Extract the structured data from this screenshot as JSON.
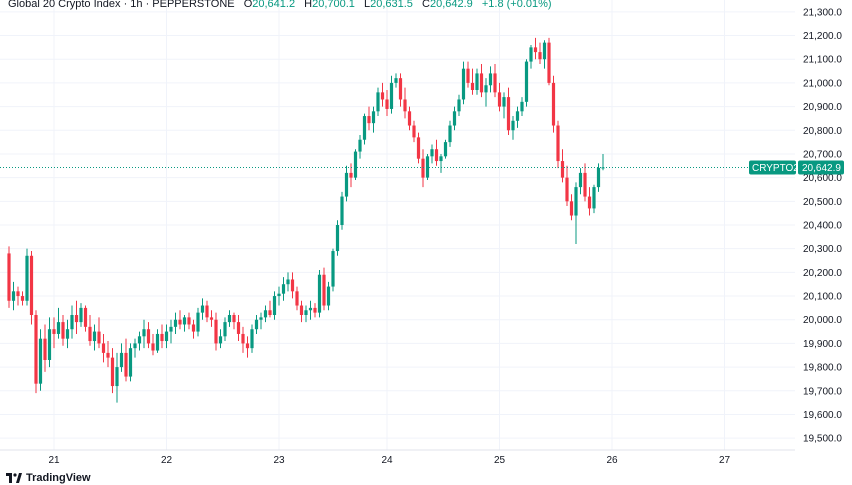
{
  "header": {
    "title": "Global 20 Crypto Index · 1h · PEPPERSTONE",
    "o_label": "O",
    "o_value": "20,641.2",
    "h_label": "H",
    "h_value": "20,700.1",
    "l_label": "L",
    "l_value": "20,631.5",
    "c_label": "C",
    "c_value": "20,642.9",
    "change": "+1.8 (+0.01%)"
  },
  "price_tag": {
    "symbol": "CRYPTO20",
    "price": "20,642.9"
  },
  "footer": {
    "brand": "TradingView"
  },
  "colors": {
    "up": "#089981",
    "down": "#f23645",
    "grid": "#f0f3fa",
    "last_line": "#089981"
  },
  "chart_data": {
    "type": "candlestick",
    "ylim": [
      19450,
      21350
    ],
    "y_ticks": [
      19500,
      19600,
      19700,
      19800,
      19900,
      20000,
      20100,
      20200,
      20300,
      20400,
      20500,
      20600,
      20700,
      20800,
      20900,
      21000,
      21100,
      21200,
      21300
    ],
    "y_tick_labels": [
      "19,500.0",
      "19,600.0",
      "19,700.0",
      "19,800.0",
      "19,900.0",
      "20,000.0",
      "20,100.0",
      "20,200.0",
      "20,300.0",
      "20,400.0",
      "20,500.0",
      "20,600.0",
      "20,700.0",
      "20,800.0",
      "20,900.0",
      "21,000.0",
      "21,100.0",
      "21,200.0",
      "21,300.0"
    ],
    "x_ticks": [
      {
        "label": "21",
        "index": 10
      },
      {
        "label": "22",
        "index": 35
      },
      {
        "label": "23",
        "index": 60
      },
      {
        "label": "24",
        "index": 84
      },
      {
        "label": "25",
        "index": 109
      },
      {
        "label": "26",
        "index": 134
      },
      {
        "label": "27",
        "index": 159
      }
    ],
    "last_price": 20642.9,
    "candles": [
      [
        20280,
        20310,
        20050,
        20080
      ],
      [
        20080,
        20160,
        20040,
        20120
      ],
      [
        20120,
        20140,
        20060,
        20100
      ],
      [
        20100,
        20120,
        20060,
        20080
      ],
      [
        20080,
        20300,
        20060,
        20270
      ],
      [
        20270,
        20290,
        19980,
        20020
      ],
      [
        20020,
        20040,
        19690,
        19730
      ],
      [
        19730,
        19960,
        19700,
        19920
      ],
      [
        19920,
        19980,
        19780,
        19830
      ],
      [
        19830,
        20010,
        19800,
        19960
      ],
      [
        19960,
        20010,
        19880,
        19940
      ],
      [
        19940,
        20050,
        19920,
        19990
      ],
      [
        19990,
        20020,
        19890,
        19920
      ],
      [
        19920,
        20000,
        19880,
        19960
      ],
      [
        19960,
        20060,
        19920,
        20020
      ],
      [
        20020,
        20080,
        19940,
        19990
      ],
      [
        19990,
        20070,
        19970,
        20050
      ],
      [
        20050,
        20060,
        19950,
        19970
      ],
      [
        19970,
        20020,
        19890,
        19910
      ],
      [
        19910,
        19980,
        19870,
        19950
      ],
      [
        19950,
        20010,
        19880,
        19900
      ],
      [
        19900,
        19940,
        19820,
        19860
      ],
      [
        19860,
        19910,
        19800,
        19840
      ],
      [
        19840,
        19880,
        19690,
        19720
      ],
      [
        19720,
        19860,
        19650,
        19800
      ],
      [
        19800,
        19900,
        19780,
        19860
      ],
      [
        19860,
        19920,
        19740,
        19760
      ],
      [
        19760,
        19900,
        19740,
        19880
      ],
      [
        19880,
        19920,
        19840,
        19900
      ],
      [
        19900,
        19950,
        19870,
        19930
      ],
      [
        19930,
        20000,
        19880,
        19960
      ],
      [
        19960,
        19990,
        19880,
        19900
      ],
      [
        19900,
        19940,
        19850,
        19870
      ],
      [
        19870,
        19960,
        19860,
        19940
      ],
      [
        19940,
        19980,
        19880,
        19910
      ],
      [
        19910,
        19980,
        19880,
        19950
      ],
      [
        19950,
        20000,
        19900,
        19970
      ],
      [
        19970,
        20030,
        19940,
        20000
      ],
      [
        20000,
        20040,
        19960,
        19980
      ],
      [
        19980,
        20020,
        19950,
        20010
      ],
      [
        20010,
        20030,
        19960,
        19980
      ],
      [
        19980,
        20000,
        19920,
        19950
      ],
      [
        19950,
        20050,
        19930,
        20030
      ],
      [
        20030,
        20090,
        20000,
        20060
      ],
      [
        20060,
        20080,
        19990,
        20010
      ],
      [
        20010,
        20040,
        19970,
        20000
      ],
      [
        20000,
        20030,
        19870,
        19900
      ],
      [
        19900,
        19960,
        19880,
        19930
      ],
      [
        19930,
        20010,
        19910,
        19990
      ],
      [
        19990,
        20040,
        19970,
        20020
      ],
      [
        20020,
        20030,
        19960,
        19990
      ],
      [
        19990,
        20020,
        19910,
        19940
      ],
      [
        19940,
        19970,
        19860,
        19900
      ],
      [
        19900,
        19930,
        19840,
        19880
      ],
      [
        19880,
        19980,
        19860,
        19960
      ],
      [
        19960,
        20020,
        19940,
        20000
      ],
      [
        20000,
        20030,
        19960,
        20010
      ],
      [
        20010,
        20060,
        19990,
        20040
      ],
      [
        20040,
        20080,
        20010,
        20020
      ],
      [
        20020,
        20120,
        20000,
        20100
      ],
      [
        20100,
        20140,
        20060,
        20110
      ],
      [
        20110,
        20180,
        20080,
        20150
      ],
      [
        20150,
        20200,
        20120,
        20170
      ],
      [
        20170,
        20200,
        20090,
        20120
      ],
      [
        20120,
        20140,
        20040,
        20060
      ],
      [
        20060,
        20080,
        19990,
        20020
      ],
      [
        20020,
        20060,
        19990,
        20040
      ],
      [
        20040,
        20080,
        20000,
        20050
      ],
      [
        20050,
        20070,
        20010,
        20030
      ],
      [
        20030,
        20210,
        20010,
        20190
      ],
      [
        20190,
        20220,
        20040,
        20060
      ],
      [
        20060,
        20160,
        20040,
        20140
      ],
      [
        20140,
        20300,
        20120,
        20290
      ],
      [
        20290,
        20420,
        20270,
        20400
      ],
      [
        20400,
        20540,
        20380,
        20520
      ],
      [
        20520,
        20650,
        20500,
        20620
      ],
      [
        20620,
        20660,
        20560,
        20600
      ],
      [
        20600,
        20720,
        20590,
        20710
      ],
      [
        20710,
        20780,
        20680,
        20760
      ],
      [
        20760,
        20870,
        20740,
        20860
      ],
      [
        20860,
        20900,
        20800,
        20830
      ],
      [
        20830,
        20900,
        20790,
        20880
      ],
      [
        20880,
        20980,
        20860,
        20960
      ],
      [
        20960,
        21000,
        20900,
        20930
      ],
      [
        20930,
        20970,
        20860,
        20890
      ],
      [
        20890,
        21030,
        20870,
        21000
      ],
      [
        21000,
        21040,
        20980,
        21020
      ],
      [
        21020,
        21040,
        20900,
        20930
      ],
      [
        20930,
        20980,
        20850,
        20880
      ],
      [
        20880,
        20900,
        20800,
        20820
      ],
      [
        20820,
        20840,
        20750,
        20770
      ],
      [
        20770,
        20790,
        20660,
        20680
      ],
      [
        20680,
        20720,
        20560,
        20600
      ],
      [
        20600,
        20700,
        20590,
        20690
      ],
      [
        20690,
        20740,
        20660,
        20720
      ],
      [
        20720,
        20760,
        20650,
        20670
      ],
      [
        20670,
        20700,
        20620,
        20690
      ],
      [
        20690,
        20760,
        20680,
        20750
      ],
      [
        20750,
        20840,
        20730,
        20820
      ],
      [
        20820,
        20900,
        20800,
        20880
      ],
      [
        20880,
        20950,
        20860,
        20930
      ],
      [
        20930,
        21090,
        20910,
        21060
      ],
      [
        21060,
        21090,
        20980,
        21000
      ],
      [
        21000,
        21060,
        20950,
        20970
      ],
      [
        20970,
        21060,
        20950,
        21040
      ],
      [
        21040,
        21080,
        20940,
        20960
      ],
      [
        20960,
        21020,
        20900,
        20990
      ],
      [
        20990,
        21070,
        20960,
        21040
      ],
      [
        21040,
        21080,
        20940,
        20960
      ],
      [
        20960,
        21000,
        20880,
        20900
      ],
      [
        20900,
        20960,
        20850,
        20940
      ],
      [
        20940,
        20980,
        20780,
        20800
      ],
      [
        20800,
        20860,
        20760,
        20840
      ],
      [
        20840,
        20900,
        20810,
        20880
      ],
      [
        20880,
        20940,
        20860,
        20920
      ],
      [
        20920,
        21100,
        20900,
        21090
      ],
      [
        21090,
        21160,
        21060,
        21150
      ],
      [
        21150,
        21190,
        21100,
        21130
      ],
      [
        21130,
        21170,
        21080,
        21100
      ],
      [
        21100,
        21180,
        21060,
        21170
      ],
      [
        21170,
        21190,
        20990,
        21000
      ],
      [
        21000,
        21030,
        20790,
        20820
      ],
      [
        20820,
        20840,
        20640,
        20670
      ],
      [
        20670,
        20720,
        20580,
        20600
      ],
      [
        20600,
        20650,
        20480,
        20500
      ],
      [
        20500,
        20530,
        20420,
        20440
      ],
      [
        20440,
        20580,
        20320,
        20560
      ],
      [
        20560,
        20640,
        20530,
        20620
      ],
      [
        20620,
        20660,
        20500,
        20520
      ],
      [
        20520,
        20560,
        20440,
        20470
      ],
      [
        20470,
        20570,
        20450,
        20560
      ],
      [
        20560,
        20660,
        20540,
        20641
      ],
      [
        20641,
        20700,
        20631,
        20643
      ]
    ]
  }
}
